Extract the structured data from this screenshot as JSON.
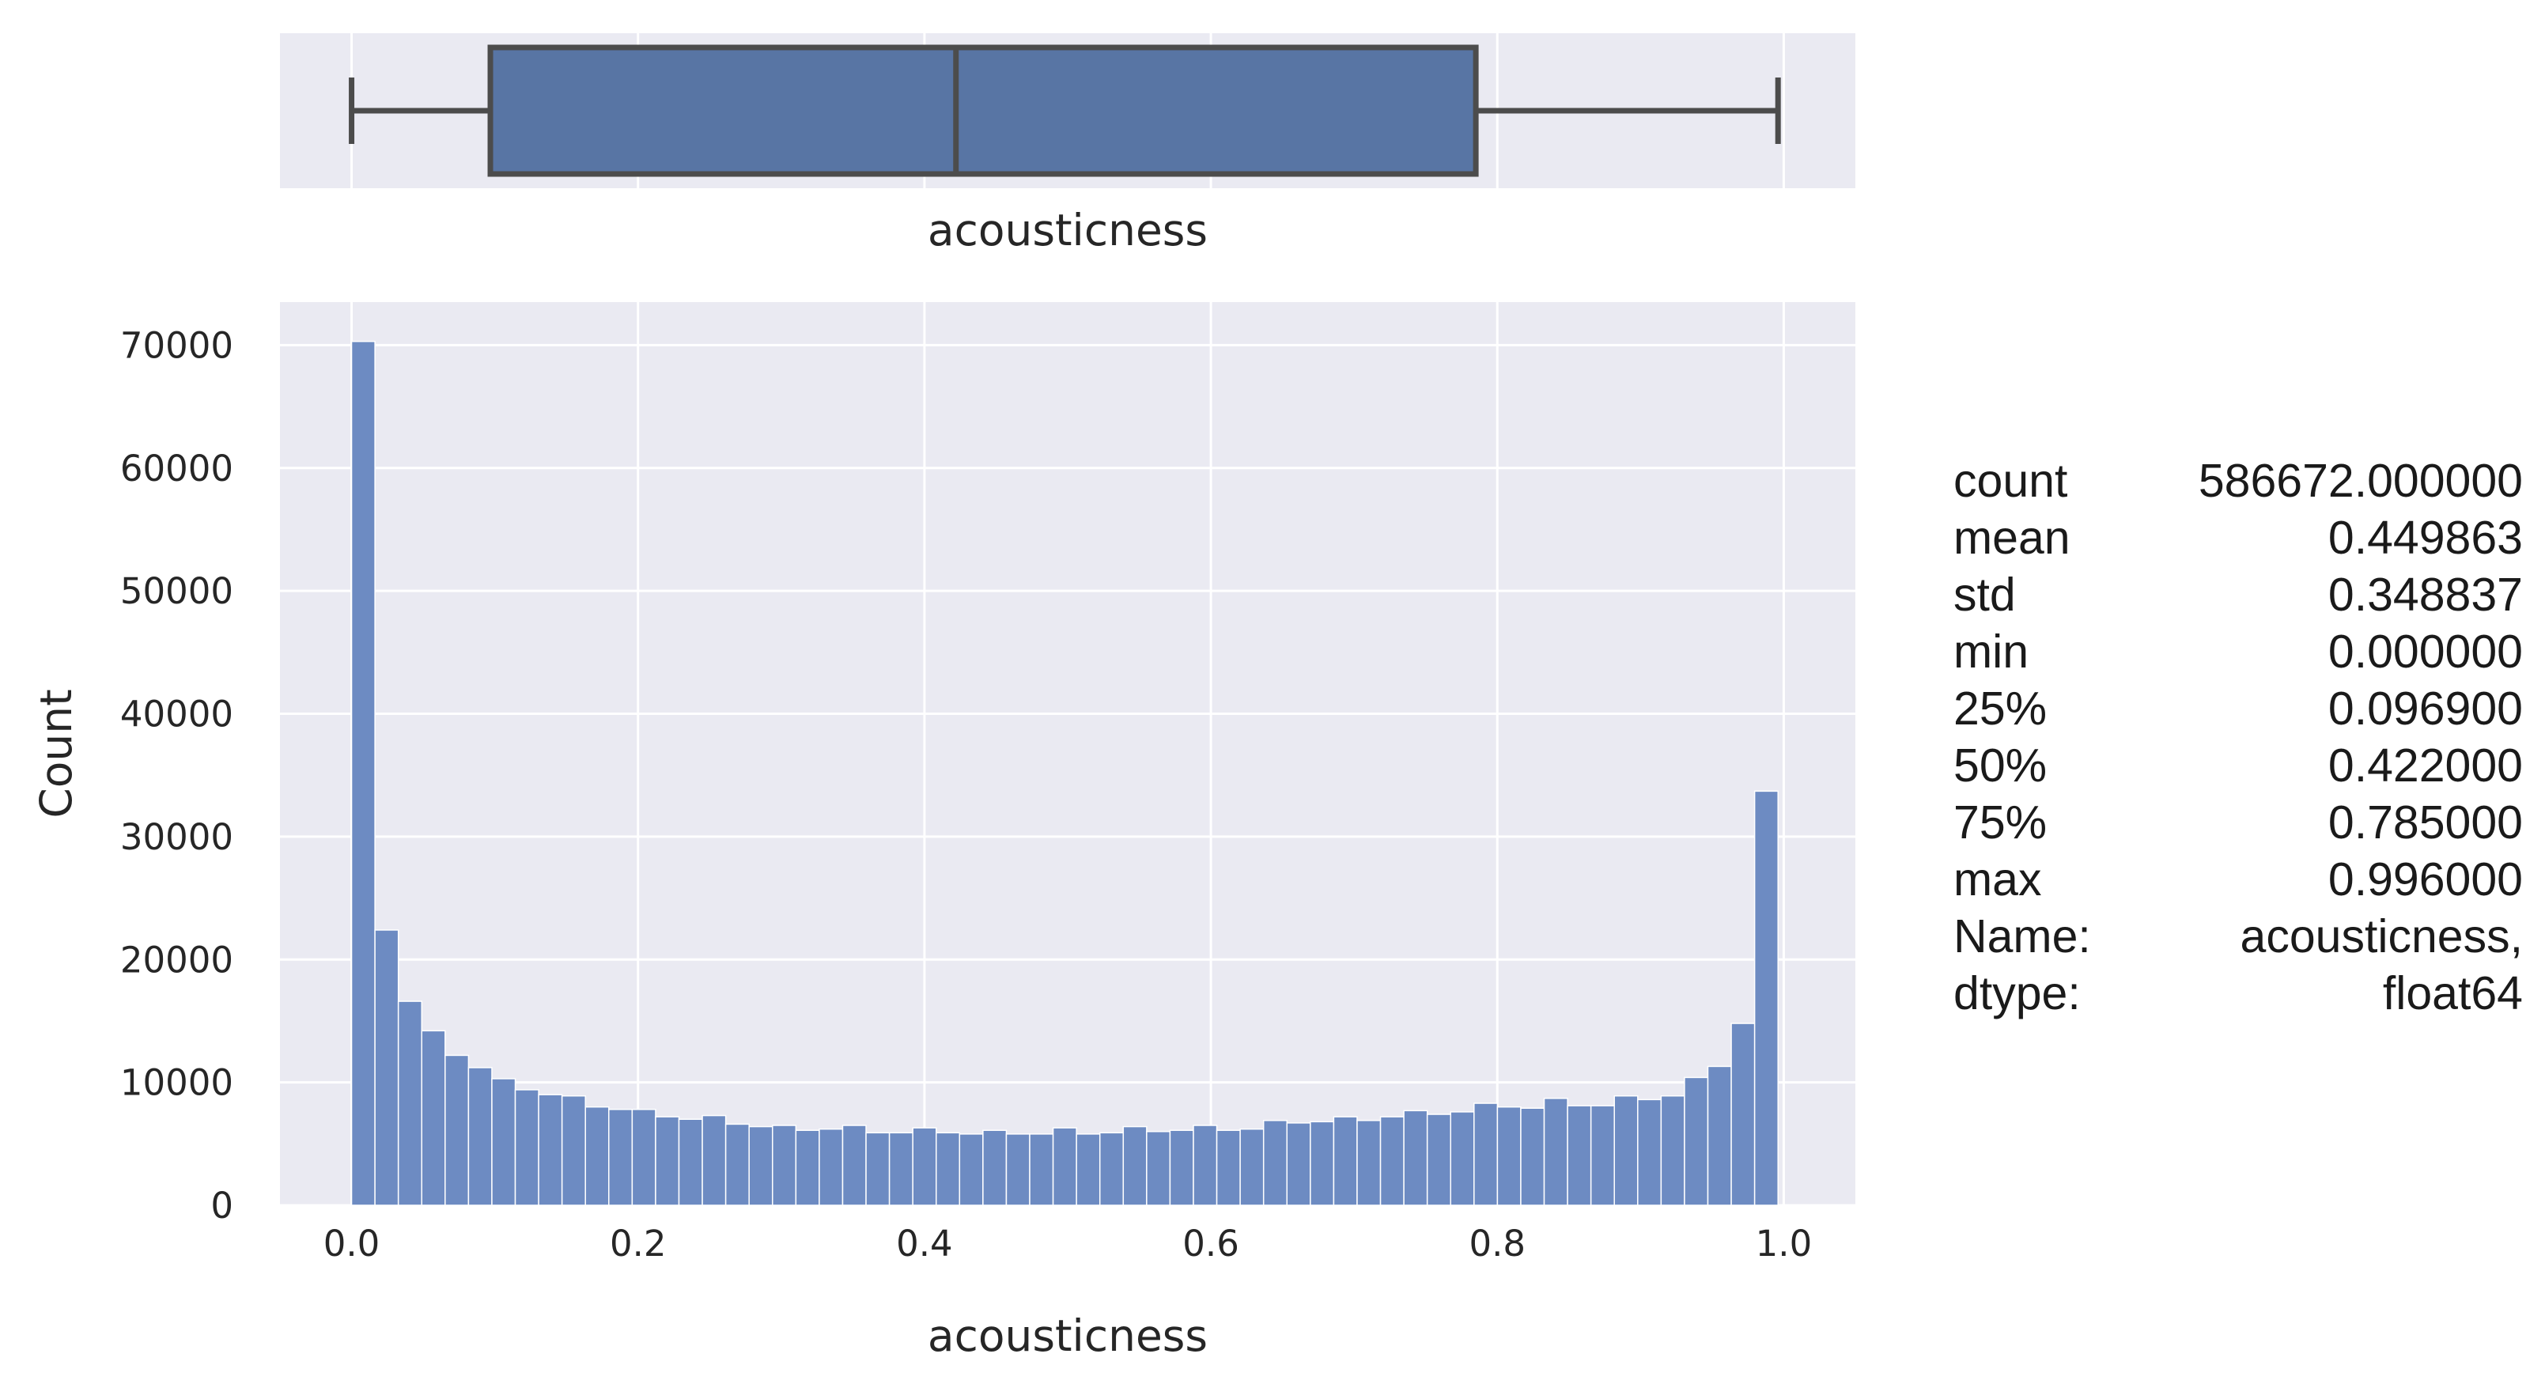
{
  "chart_data": [
    {
      "type": "box",
      "xlabel": "acousticness",
      "xlim": [
        -0.05,
        1.05
      ],
      "box": {
        "whisker_low": 0.0,
        "q1": 0.0969,
        "median": 0.422,
        "q3": 0.785,
        "whisker_high": 0.996
      },
      "grid": true,
      "colors": {
        "face": "#5875a4",
        "edge": "#4c4c4c",
        "background": "#eaeaf2",
        "grid": "#ffffff"
      }
    },
    {
      "type": "bar",
      "xlabel": "acousticness",
      "ylabel": "Count",
      "xlim": [
        -0.05,
        1.05
      ],
      "ylim": [
        0,
        73500
      ],
      "x_ticks": [
        "0.0",
        "0.2",
        "0.4",
        "0.6",
        "0.8",
        "1.0"
      ],
      "y_ticks": [
        "0",
        "10000",
        "20000",
        "30000",
        "40000",
        "50000",
        "60000",
        "70000"
      ],
      "bin_range": [
        0.0,
        0.996
      ],
      "values": [
        70300,
        22400,
        16600,
        14200,
        12200,
        11200,
        10300,
        9400,
        9000,
        8900,
        8000,
        7800,
        7800,
        7200,
        7000,
        7300,
        6600,
        6400,
        6500,
        6100,
        6200,
        6500,
        5900,
        5900,
        6300,
        5900,
        5800,
        6100,
        5800,
        5800,
        6300,
        5800,
        5900,
        6400,
        6000,
        6100,
        6500,
        6100,
        6200,
        6900,
        6700,
        6800,
        7200,
        6900,
        7200,
        7700,
        7400,
        7600,
        8300,
        8000,
        7900,
        8700,
        8100,
        8100,
        8900,
        8600,
        8900,
        10400,
        11300,
        14800,
        33700
      ],
      "grid": true,
      "colors": {
        "bar": "#6d8bc2",
        "bar_edge": "#ffffff",
        "background": "#eaeaf2",
        "grid": "#ffffff"
      }
    }
  ],
  "stats": [
    {
      "key": "count",
      "value": "586672.000000"
    },
    {
      "key": "mean",
      "value": "0.449863"
    },
    {
      "key": "std",
      "value": "0.348837"
    },
    {
      "key": "min",
      "value": "0.000000"
    },
    {
      "key": "25%",
      "value": "0.096900"
    },
    {
      "key": "50%",
      "value": "0.422000"
    },
    {
      "key": "75%",
      "value": "0.785000"
    },
    {
      "key": "max",
      "value": "0.996000"
    },
    {
      "key": "Name:",
      "value": "acousticness,"
    },
    {
      "key": "dtype:",
      "value": "float64"
    }
  ]
}
